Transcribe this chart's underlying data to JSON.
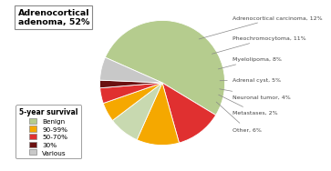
{
  "sizes": [
    52,
    12,
    11,
    8,
    5,
    4,
    2,
    6
  ],
  "colors": [
    "#b5cc8e",
    "#e03030",
    "#f5a800",
    "#b5cc8e",
    "#f5a800",
    "#e03030",
    "#6b1010",
    "#c8c8c8"
  ],
  "myelolipoma_color": "#c8d9b0",
  "startangle": 156,
  "adenoma_box_text": "Adrenocortical\nadenoma, 52%",
  "legend_title": "5-year survival",
  "survival_colors": [
    "#b5cc8e",
    "#f5a800",
    "#e03030",
    "#6b1010",
    "#c8c8c8"
  ],
  "survival_labels": [
    "Benign",
    "90-99%",
    "50-70%",
    "30%",
    "Various"
  ],
  "right_labels": [
    {
      "idx": 1,
      "text": "Adrenocortical carcinoma, 12%"
    },
    {
      "idx": 2,
      "text": "Pheochromocytoma, 11%"
    },
    {
      "idx": 3,
      "text": "Myelolipoma, 8%"
    },
    {
      "idx": 4,
      "text": "Adrenal cyst, 5%"
    },
    {
      "idx": 5,
      "text": "Neuronal tumor, 4%"
    },
    {
      "idx": 6,
      "text": "Metastases, 2%"
    },
    {
      "idx": 7,
      "text": "Other, 6%"
    }
  ],
  "bg_color": "#ffffff"
}
